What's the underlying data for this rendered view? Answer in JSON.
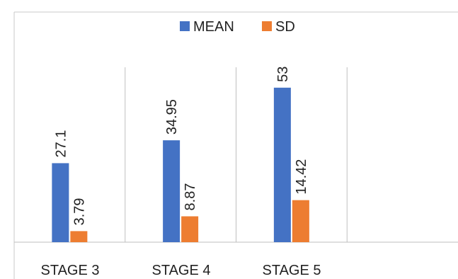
{
  "chart_data": {
    "type": "bar",
    "categories": [
      "STAGE 3",
      "STAGE 4",
      "STAGE 5",
      ""
    ],
    "series": [
      {
        "name": "MEAN",
        "color": "#4472c4",
        "values": [
          27.1,
          34.95,
          53,
          null
        ],
        "labels": [
          "27.1",
          "34.95",
          "53",
          ""
        ]
      },
      {
        "name": "SD",
        "color": "#ed7d31",
        "values": [
          3.79,
          8.87,
          14.42,
          null
        ],
        "labels": [
          "3.79",
          "8.87",
          "14.42",
          ""
        ]
      }
    ],
    "ylim": [
      0,
      60
    ],
    "grid": "vertical category separators",
    "legend": "top"
  }
}
